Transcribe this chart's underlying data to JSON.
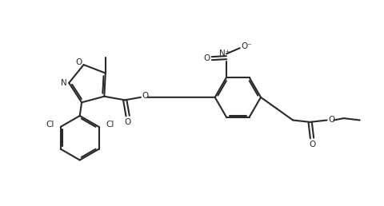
{
  "background_color": "#ffffff",
  "line_color": "#2a2a2a",
  "line_width": 1.5,
  "figsize": [
    4.8,
    2.58
  ],
  "dpi": 100,
  "xlim": [
    0,
    10
  ],
  "ylim": [
    0,
    5.4
  ]
}
